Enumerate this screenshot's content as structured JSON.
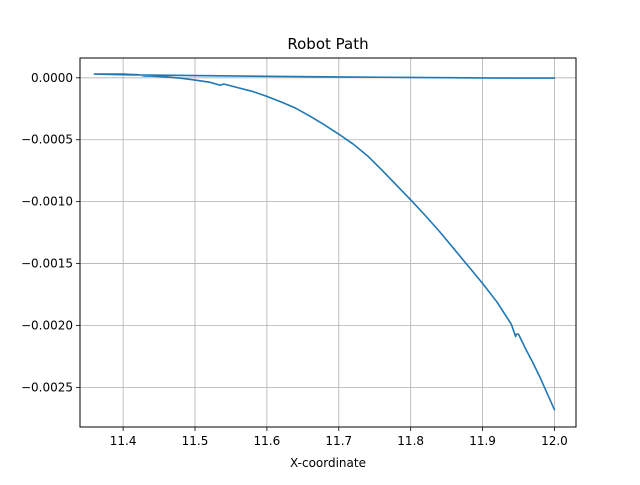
{
  "chart_data": {
    "type": "line",
    "title": "Robot Path",
    "xlabel": "X-coordinate",
    "ylabel": "",
    "xlim": [
      11.34,
      12.03
    ],
    "ylim": [
      -0.00282,
      0.00016
    ],
    "grid": true,
    "x_ticks": [
      {
        "value": 11.4,
        "label": "11.4"
      },
      {
        "value": 11.5,
        "label": "11.5"
      },
      {
        "value": 11.6,
        "label": "11.6"
      },
      {
        "value": 11.7,
        "label": "11.7"
      },
      {
        "value": 11.8,
        "label": "11.8"
      },
      {
        "value": 11.9,
        "label": "11.9"
      },
      {
        "value": 12.0,
        "label": "12.0"
      }
    ],
    "y_ticks": [
      {
        "value": 0.0,
        "label": "0.0000"
      },
      {
        "value": -0.0005,
        "label": "−0.0005"
      },
      {
        "value": -0.001,
        "label": "−0.0010"
      },
      {
        "value": -0.0015,
        "label": "−0.0015"
      },
      {
        "value": -0.002,
        "label": "−0.0020"
      },
      {
        "value": -0.0025,
        "label": "−0.0025"
      }
    ],
    "series": [
      {
        "color": "#1f77b4",
        "x": [
          12.0,
          11.99,
          11.98,
          11.97,
          11.96,
          11.95,
          11.947,
          11.946,
          11.94,
          11.92,
          11.9,
          11.88,
          11.86,
          11.84,
          11.82,
          11.8,
          11.78,
          11.76,
          11.74,
          11.72,
          11.7,
          11.68,
          11.66,
          11.64,
          11.62,
          11.6,
          11.58,
          11.56,
          11.54,
          11.535,
          11.52,
          11.5,
          11.48,
          11.46,
          11.44,
          11.43,
          11.42,
          11.4,
          11.38,
          11.36,
          11.4,
          11.5,
          11.6,
          11.7,
          11.8,
          11.9,
          11.95,
          12.0
        ],
        "y": [
          -0.00268,
          -0.00255,
          -0.00242,
          -0.0023,
          -0.00219,
          -0.00207,
          -0.00207,
          -0.00209,
          -0.00199,
          -0.00181,
          -0.00166,
          -0.00152,
          -0.00138,
          -0.00124,
          -0.00111,
          -0.000985,
          -0.000865,
          -0.000745,
          -0.00063,
          -0.000535,
          -0.000455,
          -0.00038,
          -0.00031,
          -0.000245,
          -0.000195,
          -0.00015,
          -0.00011,
          -8e-05,
          -5e-05,
          -6e-05,
          -3.5e-05,
          -1.8e-05,
          -3e-06,
          7e-06,
          1.4e-05,
          1.5e-05,
          2.5e-05,
          3e-05,
          3e-05,
          3e-05,
          2.5e-05,
          1.8e-05,
          1.2e-05,
          7e-06,
          3e-06,
          -1e-06,
          -2e-06,
          -2e-06
        ]
      }
    ]
  }
}
